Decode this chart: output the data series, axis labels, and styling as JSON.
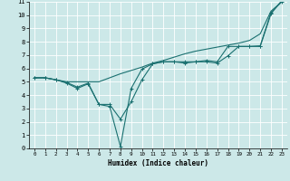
{
  "xlabel": "Humidex (Indice chaleur)",
  "bg_color": "#cce8e8",
  "grid_color": "#b0d8d8",
  "line_color": "#1a7070",
  "xlim": [
    -0.5,
    23.5
  ],
  "ylim": [
    0,
    11
  ],
  "xticks": [
    0,
    1,
    2,
    3,
    4,
    5,
    6,
    7,
    8,
    9,
    10,
    11,
    12,
    13,
    14,
    15,
    16,
    17,
    18,
    19,
    20,
    21,
    22,
    23
  ],
  "yticks": [
    0,
    1,
    2,
    3,
    4,
    5,
    6,
    7,
    8,
    9,
    10,
    11
  ],
  "series1_x": [
    0,
    1,
    2,
    3,
    4,
    5,
    6,
    7,
    8,
    9,
    10,
    11,
    12,
    13,
    14,
    15,
    16,
    17,
    18,
    19,
    20,
    21,
    22,
    23
  ],
  "series1_y": [
    5.3,
    5.3,
    5.15,
    5.0,
    5.0,
    5.0,
    5.0,
    5.3,
    5.6,
    5.85,
    6.1,
    6.4,
    6.6,
    6.85,
    7.1,
    7.3,
    7.45,
    7.6,
    7.75,
    7.9,
    8.1,
    8.6,
    10.3,
    11.0
  ],
  "series2_x": [
    0,
    1,
    2,
    3,
    4,
    5,
    6,
    7,
    8,
    9,
    10,
    11,
    12,
    13,
    14,
    15,
    16,
    17,
    18,
    19,
    20,
    21,
    22,
    23
  ],
  "series2_y": [
    5.3,
    5.3,
    5.15,
    4.95,
    4.6,
    4.9,
    3.3,
    3.3,
    2.2,
    3.5,
    5.15,
    6.35,
    6.5,
    6.5,
    6.5,
    6.5,
    6.6,
    6.5,
    7.65,
    7.65,
    7.65,
    7.7,
    10.2,
    11.0
  ],
  "series3_x": [
    0,
    1,
    2,
    3,
    4,
    5,
    6,
    7,
    8,
    9,
    10,
    11,
    12,
    13,
    14,
    15,
    16,
    17,
    18,
    19,
    20,
    21,
    22,
    23
  ],
  "series3_y": [
    5.3,
    5.3,
    5.15,
    4.9,
    4.5,
    4.85,
    3.3,
    3.15,
    0.15,
    4.5,
    5.95,
    6.35,
    6.5,
    6.5,
    6.4,
    6.5,
    6.5,
    6.4,
    6.95,
    7.65,
    7.65,
    7.65,
    10.1,
    11.1
  ]
}
